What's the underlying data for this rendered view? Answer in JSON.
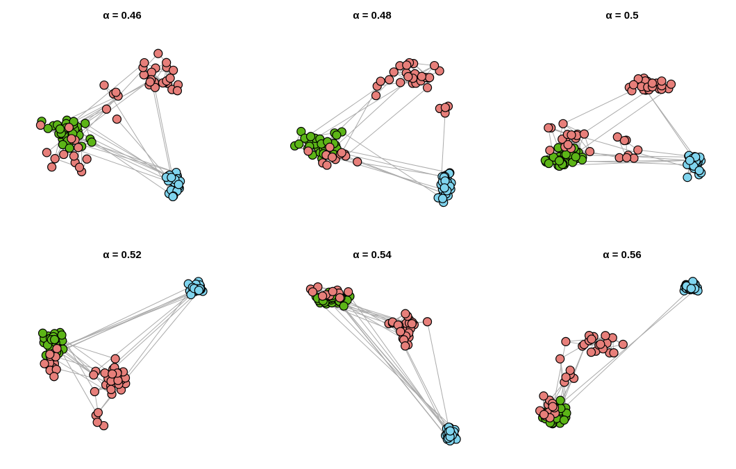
{
  "panels": [
    {
      "title": "α  =  0.46"
    },
    {
      "title": "α  =  0.48"
    },
    {
      "title": "α  =  0.5"
    },
    {
      "title": "α  =  0.52"
    },
    {
      "title": "α  =  0.54"
    },
    {
      "title": "α  =  0.56"
    }
  ]
}
